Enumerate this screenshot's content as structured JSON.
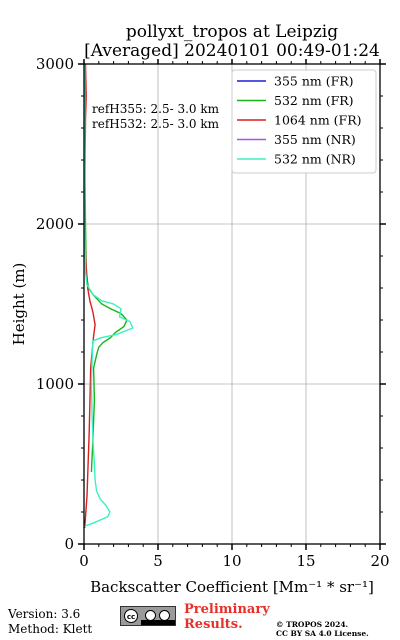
{
  "title_line1": "pollyxt_tropos at Leipzig",
  "title_line2": "[Averaged] 20240101 00:49-01:24",
  "footer": {
    "version": "Version: 3.6",
    "method": "Method: Klett",
    "preliminary_line1": "Preliminary",
    "preliminary_line2": "Results.",
    "copyright_line1": "© TROPOS 2024.",
    "copyright_line2": "CC BY SA 4.0 License."
  },
  "chart_data": {
    "type": "line",
    "xlabel": "Backscatter Coefficient [Mm⁻¹ * sr⁻¹]",
    "ylabel": "Height (m)",
    "xlim": [
      0,
      20
    ],
    "ylim": [
      0,
      3000
    ],
    "xticks": [
      "0",
      "5",
      "10",
      "15",
      "20"
    ],
    "yticks": [
      "0",
      "1000",
      "2000",
      "3000"
    ],
    "grid": true,
    "legend_position": "top-right",
    "annotations": [
      "refH355:  2.5- 3.0 km",
      "refH532:  2.5- 3.0 km"
    ],
    "series": [
      {
        "name": "355 nm (FR)",
        "color": "#1f1fd6",
        "points": []
      },
      {
        "name": "532 nm (FR)",
        "color": "#18b418",
        "points": [
          [
            0.5,
            450
          ],
          [
            0.6,
            650
          ],
          [
            0.7,
            900
          ],
          [
            0.65,
            1100
          ],
          [
            0.9,
            1200
          ],
          [
            1.0,
            1230
          ],
          [
            1.3,
            1260
          ],
          [
            1.8,
            1290
          ],
          [
            2.1,
            1320
          ],
          [
            2.7,
            1360
          ],
          [
            2.9,
            1400
          ],
          [
            2.5,
            1440
          ],
          [
            1.8,
            1470
          ],
          [
            1.2,
            1500
          ],
          [
            0.9,
            1530
          ],
          [
            0.6,
            1560
          ],
          [
            0.3,
            1600
          ],
          [
            0.15,
            1700
          ],
          [
            0.1,
            2000
          ],
          [
            0.05,
            2500
          ],
          [
            0.05,
            3000
          ]
        ]
      },
      {
        "name": "1064 nm (FR)",
        "color": "#d81f1f",
        "points": [
          [
            0.05,
            100
          ],
          [
            0.2,
            300
          ],
          [
            0.35,
            700
          ],
          [
            0.45,
            1100
          ],
          [
            0.55,
            1200
          ],
          [
            0.65,
            1300
          ],
          [
            0.75,
            1370
          ],
          [
            0.6,
            1450
          ],
          [
            0.4,
            1520
          ],
          [
            0.25,
            1600
          ],
          [
            0.1,
            1800
          ],
          [
            0.05,
            2200
          ],
          [
            0.1,
            2650
          ],
          [
            0.15,
            2800
          ],
          [
            0.1,
            3000
          ]
        ]
      },
      {
        "name": "355 nm (NR)",
        "color": "#a855e8",
        "points": []
      },
      {
        "name": "532 nm (NR)",
        "color": "#3df0c0",
        "points": [
          [
            0.0,
            110
          ],
          [
            0.6,
            130
          ],
          [
            1.1,
            150
          ],
          [
            1.6,
            170
          ],
          [
            1.75,
            200
          ],
          [
            1.5,
            240
          ],
          [
            1.1,
            280
          ],
          [
            0.85,
            330
          ],
          [
            0.75,
            400
          ],
          [
            0.7,
            500
          ],
          [
            0.6,
            650
          ],
          [
            0.55,
            800
          ],
          [
            0.5,
            1000
          ],
          [
            0.55,
            1150
          ],
          [
            0.6,
            1270
          ],
          [
            1.2,
            1290
          ],
          [
            2.2,
            1310
          ],
          [
            3.3,
            1350
          ],
          [
            3.1,
            1390
          ],
          [
            2.4,
            1420
          ],
          [
            2.5,
            1470
          ],
          [
            2.0,
            1500
          ],
          [
            1.2,
            1520
          ],
          [
            0.6,
            1560
          ],
          [
            0.2,
            1620
          ],
          [
            0.1,
            1700
          ],
          [
            0.05,
            2000
          ],
          [
            0.05,
            2500
          ],
          [
            0.05,
            3000
          ]
        ]
      }
    ]
  }
}
